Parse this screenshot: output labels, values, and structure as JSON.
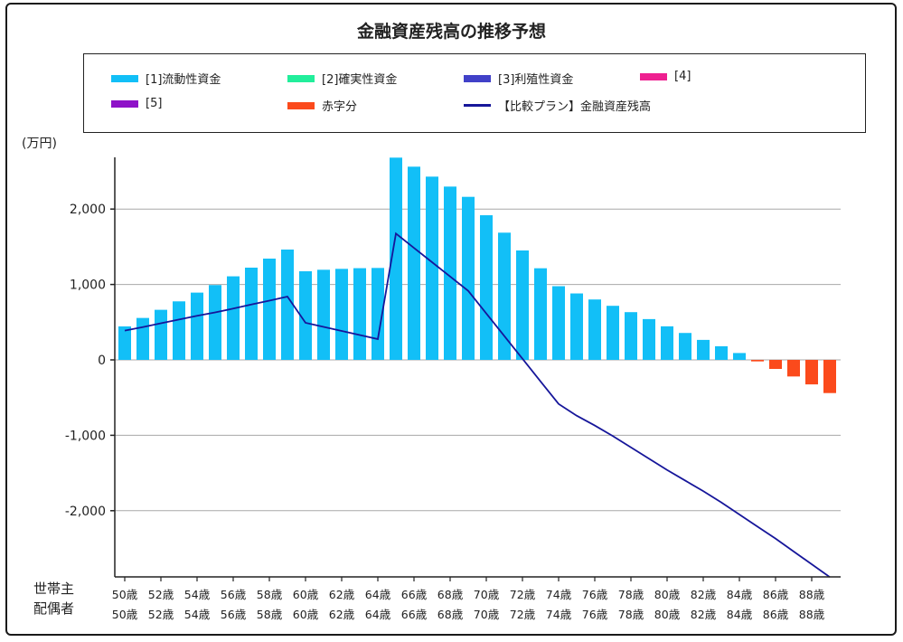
{
  "chart_data": {
    "type": "bar",
    "title": "金融資産残高の推移予想",
    "ylabel": "(万円)",
    "ylim": [
      -2900,
      2750
    ],
    "yticks": [
      -2000,
      -1000,
      0,
      1000,
      2000
    ],
    "ytick_labels": [
      "-2,000",
      "-1,000",
      "0",
      "1,000",
      "2,000"
    ],
    "grid": true,
    "x_row_labels": [
      "世帯主",
      "配偶者"
    ],
    "ages": [
      50,
      51,
      52,
      53,
      54,
      55,
      56,
      57,
      58,
      59,
      60,
      61,
      62,
      63,
      64,
      65,
      66,
      67,
      68,
      69,
      70,
      71,
      72,
      73,
      74,
      75,
      76,
      77,
      78,
      79,
      80,
      81,
      82,
      83,
      84,
      85,
      86,
      87,
      88,
      89
    ],
    "xtick_labels_head": [
      "50歳",
      "52歳",
      "54歳",
      "56歳",
      "58歳",
      "60歳",
      "62歳",
      "64歳",
      "66歳",
      "68歳",
      "70歳",
      "72歳",
      "74歳",
      "76歳",
      "78歳",
      "80歳",
      "82歳",
      "84歳",
      "86歳",
      "88歳"
    ],
    "xtick_labels_spouse": [
      "50歳",
      "52歳",
      "54歳",
      "56歳",
      "58歳",
      "60歳",
      "62歳",
      "64歳",
      "66歳",
      "68歳",
      "70歳",
      "72歳",
      "74歳",
      "76歳",
      "78歳",
      "80歳",
      "82歳",
      "84歳",
      "86歳",
      "88歳"
    ],
    "legend_position": "top",
    "legend": [
      {
        "label": "[1]流動性資金",
        "color": "#12bff7",
        "kind": "bar"
      },
      {
        "label": "[2]確実性資金",
        "color": "#22ee9b",
        "kind": "bar"
      },
      {
        "label": "[3]利殖性資金",
        "color": "#4141c8",
        "kind": "bar"
      },
      {
        "label": "[4]",
        "color": "#ee2090",
        "kind": "bar"
      },
      {
        "label": "[5]",
        "color": "#8e12c8",
        "kind": "bar"
      },
      {
        "label": "赤字分",
        "color": "#fb4a1c",
        "kind": "bar"
      },
      {
        "label": "【比較プラン】金融資産残高",
        "color": "#16169a",
        "kind": "line"
      }
    ],
    "series": [
      {
        "name": "[1]流動性資金",
        "type": "bar",
        "color": "#12bff7",
        "values": [
          444,
          556,
          664,
          776,
          892,
          992,
          1108,
          1223,
          1343,
          1463,
          1175,
          1195,
          1207,
          1216,
          1219,
          2682,
          2562,
          2430,
          2298,
          2162,
          1918,
          1687,
          1451,
          1215,
          977,
          881,
          801,
          717,
          633,
          541,
          445,
          357,
          265,
          181,
          91,
          0,
          0,
          0,
          0,
          0
        ]
      },
      {
        "name": "赤字分",
        "type": "bar",
        "color": "#fb4a1c",
        "values": [
          0,
          0,
          0,
          0,
          0,
          0,
          0,
          0,
          0,
          0,
          0,
          0,
          0,
          0,
          0,
          0,
          0,
          0,
          0,
          0,
          0,
          0,
          0,
          0,
          0,
          0,
          0,
          0,
          0,
          0,
          0,
          0,
          0,
          0,
          0,
          -20,
          -120,
          -220,
          -325,
          -440
        ]
      },
      {
        "name": "【比較プラン】金融資産残高",
        "type": "line",
        "color": "#16169a",
        "values": [
          388,
          435,
          485,
          535,
          585,
          630,
          680,
          735,
          785,
          839,
          492,
          438,
          384,
          330,
          276,
          1675,
          1485,
          1295,
          1105,
          915,
          615,
          315,
          15,
          -285,
          -584,
          -740,
          -870,
          -1010,
          -1160,
          -1310,
          -1460,
          -1600,
          -1740,
          -1890,
          -2050,
          -2210,
          -2370,
          -2540,
          -2710,
          -2880
        ]
      }
    ]
  }
}
